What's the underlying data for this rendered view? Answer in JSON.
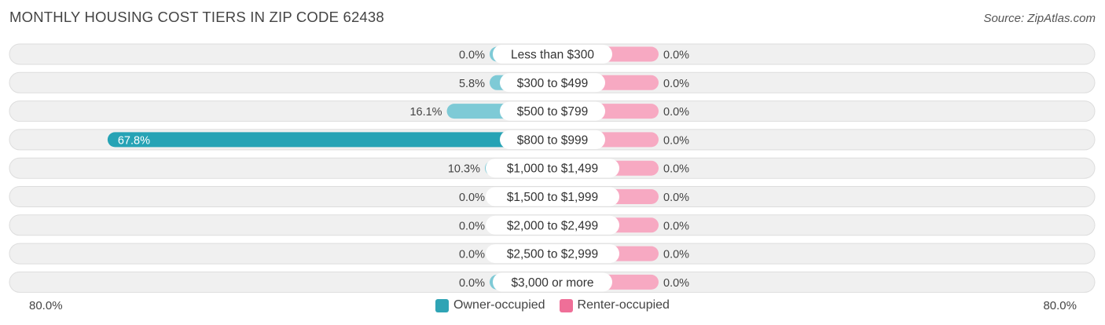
{
  "title": "MONTHLY HOUSING COST TIERS IN ZIP CODE 62438",
  "source": "Source: ZipAtlas.com",
  "colors": {
    "owner": "#7ecad6",
    "owner_highlight": "#26a3b5",
    "renter": "#f7a9c2",
    "row_bg": "#f0f0f0",
    "row_border": "#dddddd",
    "legend_owner": "#2fa4b5",
    "legend_renter": "#ef6f98"
  },
  "legend": {
    "owner": "Owner-occupied",
    "renter": "Renter-occupied"
  },
  "axis": {
    "left_label": "80.0%",
    "right_label": "80.0%"
  },
  "chart_data": {
    "type": "bar",
    "orientation": "horizontal-diverging",
    "axis_max": 80,
    "categories": [
      "Less than $300",
      "$300 to $499",
      "$500 to $799",
      "$800 to $999",
      "$1,000 to $1,499",
      "$1,500 to $1,999",
      "$2,000 to $2,499",
      "$2,500 to $2,999",
      "$3,000 or more"
    ],
    "series": [
      {
        "name": "Owner-occupied",
        "values": [
          0.0,
          5.8,
          16.1,
          67.8,
          10.3,
          0.0,
          0.0,
          0.0,
          0.0
        ],
        "labels": [
          "0.0%",
          "5.8%",
          "16.1%",
          "67.8%",
          "10.3%",
          "0.0%",
          "0.0%",
          "0.0%",
          "0.0%"
        ]
      },
      {
        "name": "Renter-occupied",
        "values": [
          0.0,
          0.0,
          0.0,
          0.0,
          0.0,
          0.0,
          0.0,
          0.0,
          0.0
        ],
        "labels": [
          "0.0%",
          "0.0%",
          "0.0%",
          "0.0%",
          "0.0%",
          "0.0%",
          "0.0%",
          "0.0%",
          "0.0%"
        ]
      }
    ],
    "legend_position": "bottom-center"
  }
}
